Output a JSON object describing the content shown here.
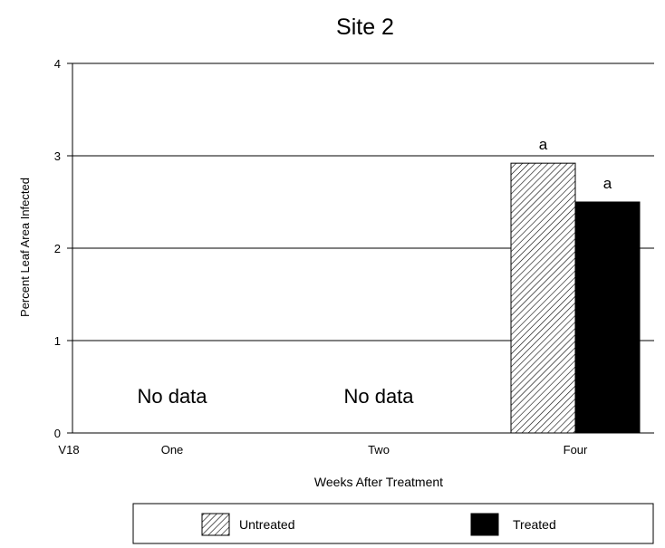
{
  "chart_data": {
    "type": "bar",
    "title": "Site 2",
    "xlabel": "Weeks After Treatment",
    "ylabel": "Percent Leaf Area Infected",
    "x_origin_label": "V18",
    "ylim": [
      0,
      4
    ],
    "yticks": [
      "0",
      "1",
      "2",
      "3",
      "4"
    ],
    "grid": true,
    "legend_position": "bottom",
    "categories": [
      "One",
      "Two",
      "Four"
    ],
    "series": [
      {
        "name": "Untreated",
        "pattern": "hatched",
        "color": "#000000",
        "values": [
          null,
          null,
          2.92
        ],
        "labels": [
          "",
          "",
          "a"
        ]
      },
      {
        "name": "Treated",
        "pattern": "solid",
        "color": "#000000",
        "values": [
          null,
          null,
          2.5
        ],
        "labels": [
          "",
          "",
          "a"
        ]
      }
    ],
    "annotations": [
      "No data",
      "No data",
      ""
    ]
  }
}
